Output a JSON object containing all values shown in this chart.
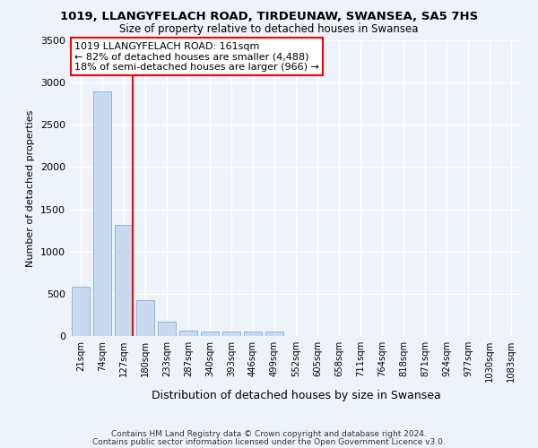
{
  "title": "1019, LLANGYFELACH ROAD, TIRDEUNAW, SWANSEA, SA5 7HS",
  "subtitle": "Size of property relative to detached houses in Swansea",
  "xlabel": "Distribution of detached houses by size in Swansea",
  "ylabel": "Number of detached properties",
  "categories": [
    "21sqm",
    "74sqm",
    "127sqm",
    "180sqm",
    "233sqm",
    "287sqm",
    "340sqm",
    "393sqm",
    "446sqm",
    "499sqm",
    "552sqm",
    "605sqm",
    "658sqm",
    "711sqm",
    "764sqm",
    "818sqm",
    "871sqm",
    "924sqm",
    "977sqm",
    "1030sqm",
    "1083sqm"
  ],
  "values": [
    580,
    2900,
    1310,
    420,
    170,
    65,
    55,
    55,
    50,
    50,
    0,
    0,
    0,
    0,
    0,
    0,
    0,
    0,
    0,
    0,
    0
  ],
  "bar_color": "#c8daf0",
  "bar_edgecolor": "#82aed4",
  "vline_color": "red",
  "vline_x_index": 2,
  "annotation_text": "1019 LLANGYFELACH ROAD: 161sqm\n← 82% of detached houses are smaller (4,488)\n18% of semi-detached houses are larger (966) →",
  "annotation_box_edgecolor": "red",
  "annotation_box_facecolor": "white",
  "ylim": [
    0,
    3500
  ],
  "yticks": [
    0,
    500,
    1000,
    1500,
    2000,
    2500,
    3000,
    3500
  ],
  "footer_line1": "Contains HM Land Registry data © Crown copyright and database right 2024.",
  "footer_line2": "Contains public sector information licensed under the Open Government Licence v3.0.",
  "bg_color": "#eef3fa",
  "plot_bg_color": "#eef3fa"
}
